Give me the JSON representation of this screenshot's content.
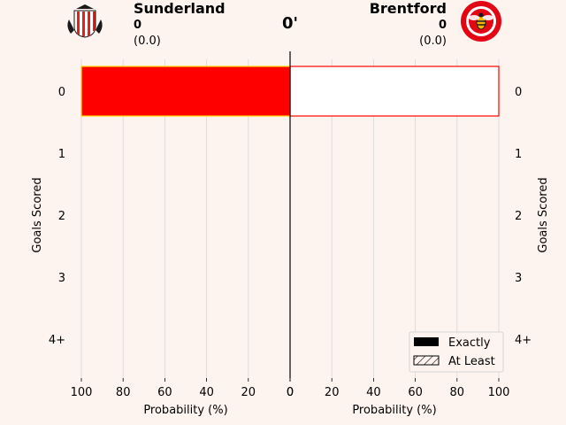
{
  "minute": "0'",
  "home": {
    "name": "Sunderland",
    "goals": "0",
    "xg": "(0.0)",
    "colors": {
      "primary": "#e2231a",
      "stripe": "#ffffff",
      "accent": "#1a1a1a"
    },
    "badge_icon": "sunderland-crest"
  },
  "away": {
    "name": "Brentford",
    "goals": "0",
    "xg": "(0.0)",
    "colors": {
      "primary": "#e30613",
      "ring": "#ffffff",
      "accent": "#fbb800"
    },
    "badge_icon": "brentford-bee-crest"
  },
  "chart_data": [
    {
      "type": "bar",
      "orientation": "horizontal",
      "side": "home",
      "categories": [
        "0",
        "1",
        "2",
        "3",
        "4+"
      ],
      "series": [
        {
          "name": "Exactly",
          "values": [
            100,
            0,
            0,
            0,
            0
          ],
          "color": "#ff0000",
          "edge": "#ffd700"
        },
        {
          "name": "At Least",
          "values": [
            100,
            0,
            0,
            0,
            0
          ],
          "hatch": true
        }
      ],
      "xlabel": "Probability (%)",
      "ylabel": "Goals Scored",
      "xlim": [
        100,
        0
      ],
      "xticks": [
        100,
        80,
        60,
        40,
        20,
        0
      ],
      "grid": "x"
    },
    {
      "type": "bar",
      "orientation": "horizontal",
      "side": "away",
      "categories": [
        "0",
        "1",
        "2",
        "3",
        "4+"
      ],
      "series": [
        {
          "name": "Exactly",
          "values": [
            100,
            0,
            0,
            0,
            0
          ],
          "color": "#ffffff",
          "edge": "#ff0000"
        },
        {
          "name": "At Least",
          "values": [
            100,
            0,
            0,
            0,
            0
          ],
          "hatch": true
        }
      ],
      "xlabel": "Probability (%)",
      "ylabel": "Goals Scored",
      "xlim": [
        0,
        100
      ],
      "xticks": [
        0,
        20,
        40,
        60,
        80,
        100
      ],
      "grid": "x"
    }
  ],
  "legend": {
    "placement": "bottom-right",
    "items": [
      {
        "label": "Exactly",
        "style": "solid"
      },
      {
        "label": "At Least",
        "style": "hatched"
      }
    ]
  }
}
